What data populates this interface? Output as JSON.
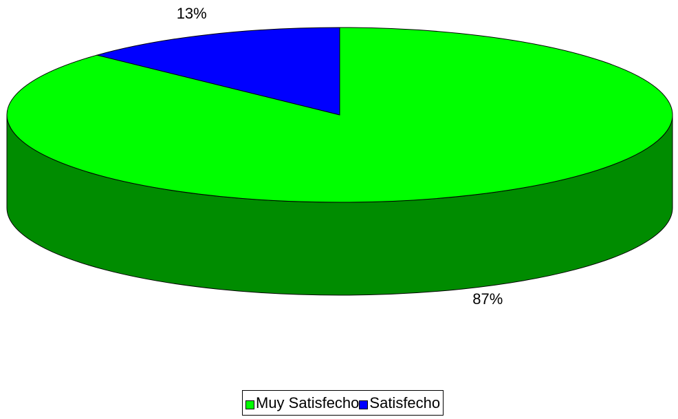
{
  "chart_data": {
    "type": "pie",
    "categories": [
      "Muy Satisfecho",
      "Satisfecho"
    ],
    "values": [
      87,
      13
    ],
    "value_labels": [
      "87%",
      "13%"
    ],
    "colors": [
      "#00ff00",
      "#0000ff"
    ],
    "legend": "bottom"
  }
}
